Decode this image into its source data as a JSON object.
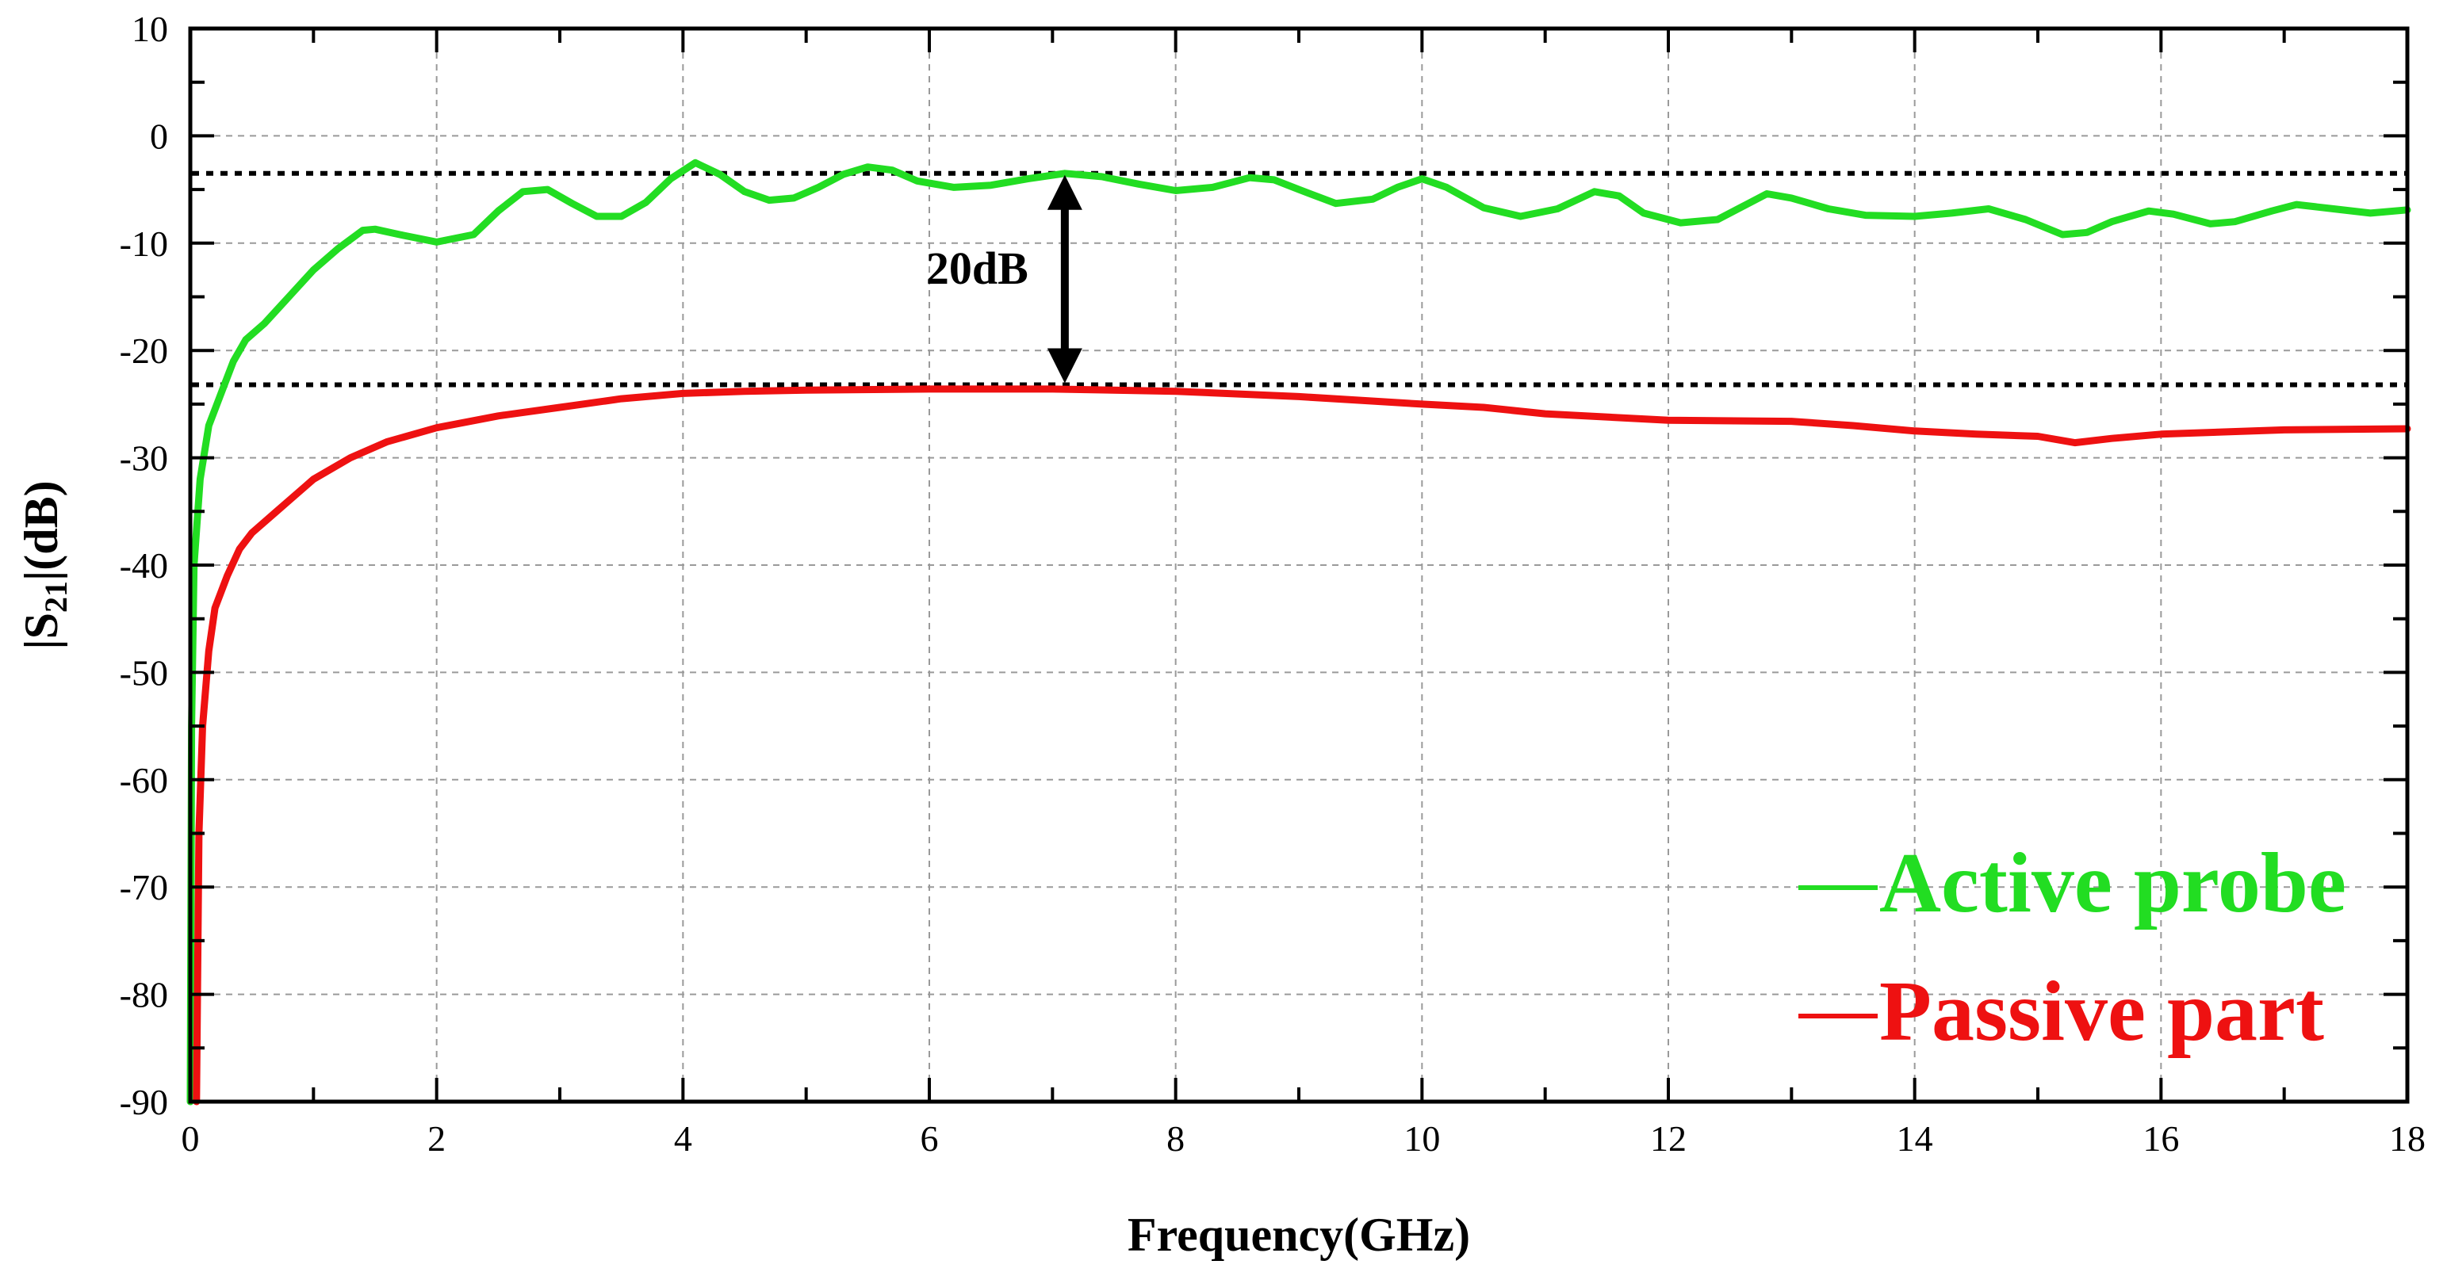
{
  "chart_data": {
    "type": "line",
    "xlabel": "Frequency(GHz)",
    "ylabel_parts": {
      "pre": "|S",
      "sub": "21",
      "post": "|(dB)"
    },
    "xlim": [
      0,
      18
    ],
    "ylim": [
      -90,
      10
    ],
    "x_ticks": [
      0,
      2,
      4,
      6,
      8,
      10,
      12,
      14,
      16,
      18
    ],
    "y_ticks": [
      10,
      0,
      -10,
      -20,
      -30,
      -40,
      -50,
      -60,
      -70,
      -80,
      -90
    ],
    "grid": true,
    "legend_position": "bottom-right",
    "series": [
      {
        "name": "Active probe",
        "color": "#22dd22",
        "points": [
          [
            0.0,
            -90
          ],
          [
            0.01,
            -55
          ],
          [
            0.03,
            -40
          ],
          [
            0.08,
            -32
          ],
          [
            0.15,
            -27
          ],
          [
            0.25,
            -24
          ],
          [
            0.35,
            -21
          ],
          [
            0.45,
            -19
          ],
          [
            0.6,
            -17.5
          ],
          [
            0.8,
            -15
          ],
          [
            1.0,
            -12.5
          ],
          [
            1.2,
            -10.5
          ],
          [
            1.4,
            -8.8
          ],
          [
            1.5,
            -8.7
          ],
          [
            1.7,
            -9.2
          ],
          [
            2.0,
            -9.9
          ],
          [
            2.3,
            -9.2
          ],
          [
            2.5,
            -7
          ],
          [
            2.7,
            -5.2
          ],
          [
            2.9,
            -5.0
          ],
          [
            3.1,
            -6.3
          ],
          [
            3.3,
            -7.5
          ],
          [
            3.5,
            -7.5
          ],
          [
            3.7,
            -6.2
          ],
          [
            3.9,
            -4.0
          ],
          [
            4.1,
            -2.5
          ],
          [
            4.3,
            -3.6
          ],
          [
            4.5,
            -5.2
          ],
          [
            4.7,
            -6.0
          ],
          [
            4.9,
            -5.8
          ],
          [
            5.1,
            -4.8
          ],
          [
            5.3,
            -3.6
          ],
          [
            5.5,
            -2.9
          ],
          [
            5.7,
            -3.2
          ],
          [
            5.9,
            -4.2
          ],
          [
            6.2,
            -4.8
          ],
          [
            6.5,
            -4.6
          ],
          [
            6.8,
            -4.0
          ],
          [
            7.1,
            -3.5
          ],
          [
            7.4,
            -3.8
          ],
          [
            7.7,
            -4.5
          ],
          [
            8.0,
            -5.1
          ],
          [
            8.3,
            -4.8
          ],
          [
            8.6,
            -3.9
          ],
          [
            8.8,
            -4.1
          ],
          [
            9.0,
            -5.0
          ],
          [
            9.3,
            -6.3
          ],
          [
            9.6,
            -5.9
          ],
          [
            9.8,
            -4.8
          ],
          [
            10.0,
            -4.0
          ],
          [
            10.2,
            -4.8
          ],
          [
            10.5,
            -6.7
          ],
          [
            10.8,
            -7.5
          ],
          [
            11.1,
            -6.8
          ],
          [
            11.4,
            -5.2
          ],
          [
            11.6,
            -5.6
          ],
          [
            11.8,
            -7.2
          ],
          [
            12.1,
            -8.1
          ],
          [
            12.4,
            -7.8
          ],
          [
            12.6,
            -6.6
          ],
          [
            12.8,
            -5.4
          ],
          [
            13.0,
            -5.8
          ],
          [
            13.3,
            -6.8
          ],
          [
            13.6,
            -7.4
          ],
          [
            14.0,
            -7.5
          ],
          [
            14.3,
            -7.2
          ],
          [
            14.6,
            -6.8
          ],
          [
            14.9,
            -7.8
          ],
          [
            15.2,
            -9.2
          ],
          [
            15.4,
            -9.0
          ],
          [
            15.6,
            -8.0
          ],
          [
            15.9,
            -7.0
          ],
          [
            16.1,
            -7.3
          ],
          [
            16.4,
            -8.2
          ],
          [
            16.6,
            -8.0
          ],
          [
            16.9,
            -7.0
          ],
          [
            17.1,
            -6.4
          ],
          [
            17.4,
            -6.8
          ],
          [
            17.7,
            -7.2
          ],
          [
            18.0,
            -6.9
          ]
        ]
      },
      {
        "name": "Passive part",
        "color": "#ee1111",
        "points": [
          [
            0.05,
            -90
          ],
          [
            0.07,
            -65
          ],
          [
            0.1,
            -55
          ],
          [
            0.15,
            -48
          ],
          [
            0.2,
            -44
          ],
          [
            0.3,
            -41
          ],
          [
            0.4,
            -38.5
          ],
          [
            0.5,
            -37
          ],
          [
            0.7,
            -35
          ],
          [
            1.0,
            -32
          ],
          [
            1.3,
            -30.0
          ],
          [
            1.6,
            -28.5
          ],
          [
            2.0,
            -27.2
          ],
          [
            2.5,
            -26.1
          ],
          [
            3.0,
            -25.3
          ],
          [
            3.5,
            -24.5
          ],
          [
            4.0,
            -24.0
          ],
          [
            4.5,
            -23.8
          ],
          [
            5.0,
            -23.7
          ],
          [
            6.0,
            -23.6
          ],
          [
            7.0,
            -23.6
          ],
          [
            8.0,
            -23.8
          ],
          [
            9.0,
            -24.3
          ],
          [
            10.0,
            -25.0
          ],
          [
            10.5,
            -25.3
          ],
          [
            11.0,
            -25.9
          ],
          [
            12.0,
            -26.5
          ],
          [
            13.0,
            -26.6
          ],
          [
            13.5,
            -27.0
          ],
          [
            14.0,
            -27.5
          ],
          [
            14.5,
            -27.8
          ],
          [
            15.0,
            -28.0
          ],
          [
            15.3,
            -28.6
          ],
          [
            15.6,
            -28.2
          ],
          [
            16.0,
            -27.8
          ],
          [
            17.0,
            -27.4
          ],
          [
            18.0,
            -27.3
          ]
        ]
      }
    ],
    "reference_lines": [
      {
        "y": -3.5,
        "style": "dotted"
      },
      {
        "y": -23.2,
        "style": "dotted"
      }
    ],
    "annotation": {
      "text": "20dB",
      "arrow_x": 7.1,
      "y_top": -3.5,
      "y_bottom": -23.2
    }
  }
}
